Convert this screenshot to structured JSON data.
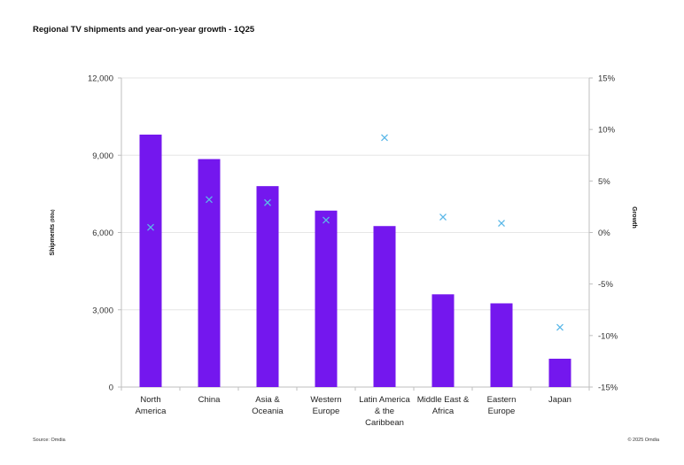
{
  "title": "Regional TV shipments and year-on-year growth - 1Q25",
  "source": "Source: Omdia",
  "copyright": "© 2025 Omdia",
  "colors": {
    "bar": "#7417EE",
    "marker": "#5BB8E8",
    "grid": "#E6E6E6",
    "axis": "#BFBFBF"
  },
  "chart_data": {
    "type": "bar",
    "categories": [
      [
        "North",
        "America"
      ],
      [
        "China"
      ],
      [
        "Asia &",
        "Oceania"
      ],
      [
        "Western",
        "Europe"
      ],
      [
        "Latin America",
        "& the",
        "Caribbean"
      ],
      [
        "Middle East &",
        "Africa"
      ],
      [
        "Eastern",
        "Europe"
      ],
      [
        "Japan"
      ]
    ],
    "series": [
      {
        "name": "Shipments",
        "type": "bar",
        "axis": "left",
        "values": [
          9800,
          8850,
          7800,
          6850,
          6250,
          3600,
          3250,
          1100
        ]
      },
      {
        "name": "Growth",
        "type": "scatter",
        "marker": "x",
        "axis": "right",
        "values": [
          0.5,
          3.2,
          2.9,
          1.2,
          9.2,
          1.5,
          0.9,
          -9.2
        ]
      }
    ],
    "ylabel": "Shipments",
    "ylabel_unit": "(000s)",
    "y2label": "Growth",
    "ylim": [
      0,
      12000
    ],
    "y2lim": [
      -15,
      15
    ],
    "yticks": [
      "0",
      "3,000",
      "6,000",
      "9,000",
      "12,000"
    ],
    "y2ticks": [
      "-15%",
      "-10%",
      "-5%",
      "0%",
      "5%",
      "10%",
      "15%"
    ],
    "grid": true
  }
}
